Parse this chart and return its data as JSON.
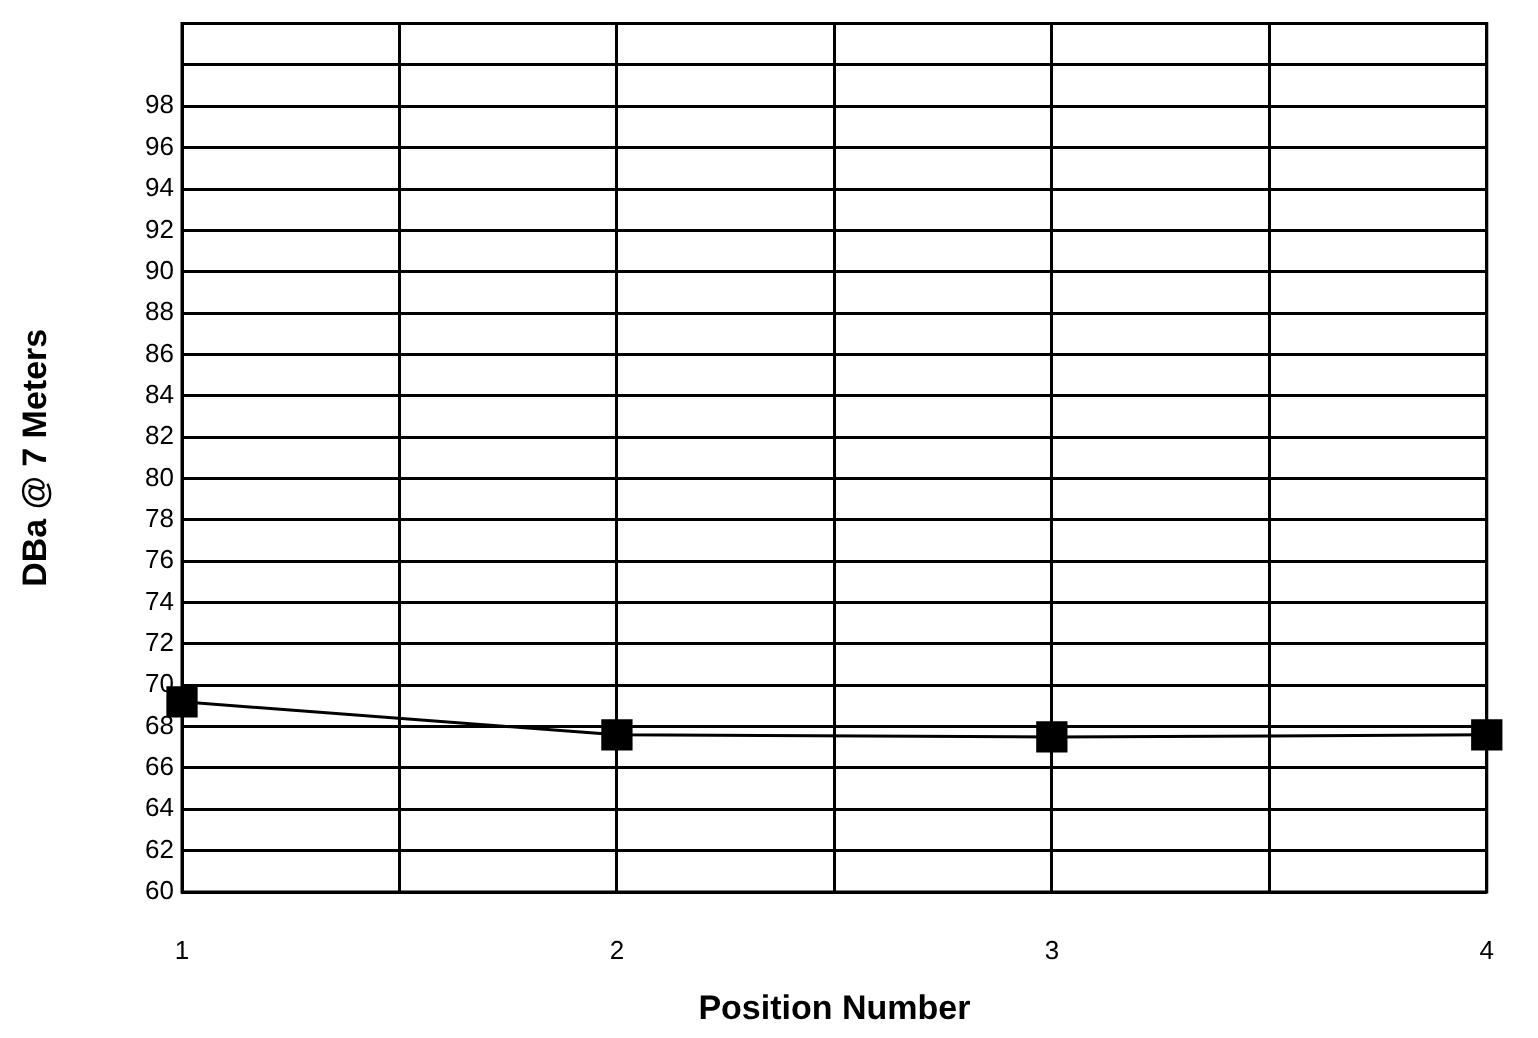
{
  "chart_data": {
    "type": "line",
    "xlabel": "Position Number",
    "ylabel": "DBa @ 7 Meters",
    "x": [
      1,
      2,
      3,
      4
    ],
    "series": [
      {
        "color": "#000000",
        "values": [
          69.2,
          67.6,
          67.5,
          67.6
        ]
      }
    ],
    "xlim": [
      1,
      4
    ],
    "xticks": [
      1,
      {
        "value": 1.5,
        "label": null
      },
      2,
      {
        "value": 2.5,
        "label": null
      },
      3,
      {
        "value": 3.5,
        "label": null
      },
      4
    ],
    "ylim": [
      60,
      102
    ],
    "yticks": [
      60,
      62,
      64,
      66,
      68,
      70,
      72,
      74,
      76,
      78,
      80,
      82,
      84,
      86,
      88,
      90,
      92,
      94,
      96,
      98,
      {
        "value": 100,
        "label": null
      }
    ],
    "grid": true,
    "legend": false,
    "marker": "square",
    "line_style": "solid"
  }
}
